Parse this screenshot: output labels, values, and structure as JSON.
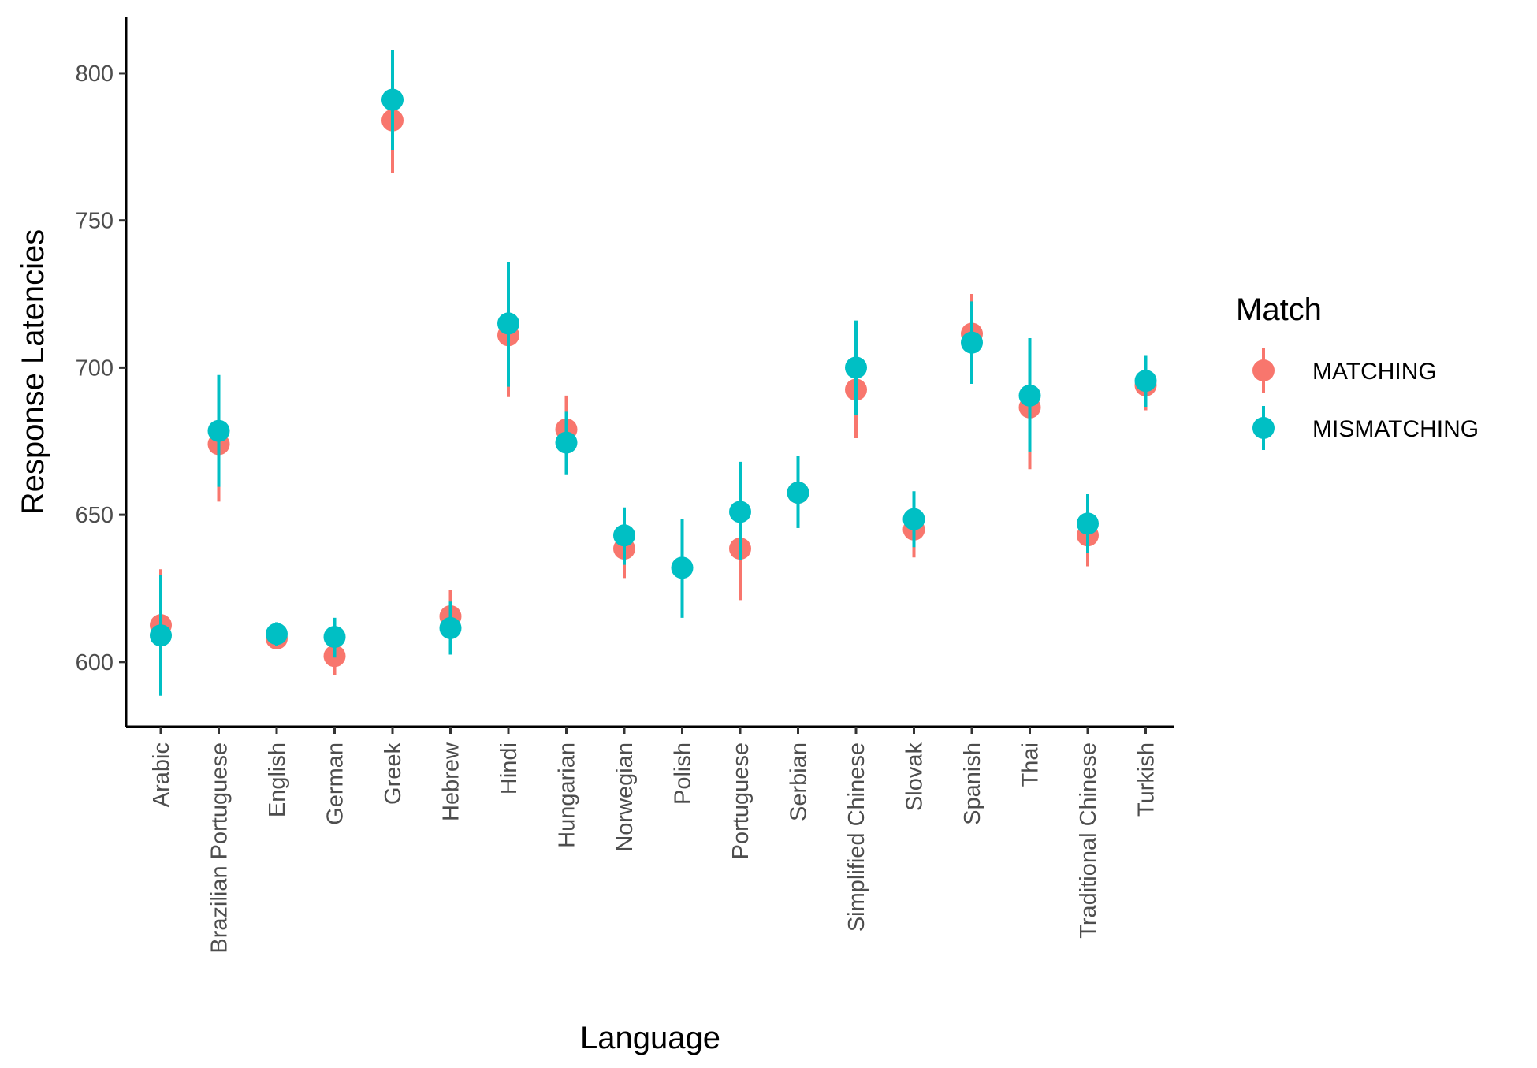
{
  "chart_data": {
    "type": "scatter",
    "xlabel": "Language",
    "ylabel": "Response Latencies",
    "categories": [
      "Arabic",
      "Brazilian Portuguese",
      "English",
      "German",
      "Greek",
      "Hebrew",
      "Hindi",
      "Hungarian",
      "Norwegian",
      "Polish",
      "Portuguese",
      "Serbian",
      "Simplified Chinese",
      "Slovak",
      "Spanish",
      "Thai",
      "Traditional Chinese",
      "Turkish"
    ],
    "y_ticks": [
      600,
      650,
      700,
      750,
      800
    ],
    "ylim": [
      578,
      819
    ],
    "legend": {
      "title": "Match",
      "position": "right"
    },
    "grid": false,
    "series": [
      {
        "name": "MATCHING",
        "color": "#F8766D",
        "values": [
          612.5,
          674,
          608,
          602,
          784,
          615.5,
          711,
          679,
          638.5,
          null,
          638.5,
          657.5,
          692.5,
          645,
          711.5,
          686.5,
          643,
          694
        ],
        "lower": [
          596,
          654.5,
          605,
          595.5,
          766,
          607.5,
          690,
          668,
          628.5,
          null,
          621,
          645.5,
          676,
          635.5,
          698,
          665.5,
          632.5,
          685.5
        ],
        "upper": [
          631.5,
          692.5,
          611,
          608.5,
          802,
          624.5,
          731,
          690.5,
          648.5,
          null,
          656,
          669.5,
          710,
          654.5,
          725,
          707.5,
          653,
          703
        ]
      },
      {
        "name": "MISMATCHING",
        "color": "#00BFC4",
        "values": [
          609,
          678.5,
          609.5,
          608.5,
          791,
          611.5,
          715,
          674.5,
          643,
          632,
          651,
          657.5,
          700,
          648.5,
          708.5,
          690.5,
          647,
          695.5
        ],
        "lower": [
          588.5,
          659.5,
          605.5,
          601.5,
          774,
          602.5,
          693.5,
          663.5,
          633,
          615,
          634.5,
          645.5,
          684,
          639,
          694.5,
          671.5,
          637,
          686.5
        ],
        "upper": [
          629.5,
          697.5,
          613.5,
          615,
          808,
          620.5,
          736,
          685,
          652.5,
          648.5,
          668,
          670,
          716,
          658,
          722.5,
          710,
          657,
          704
        ]
      }
    ]
  }
}
